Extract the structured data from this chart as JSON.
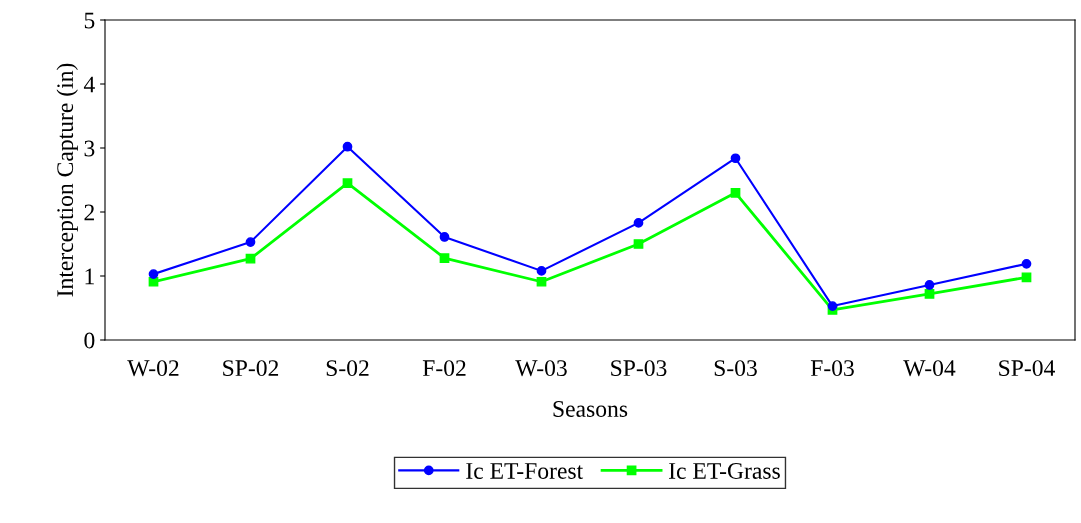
{
  "chart_data": {
    "type": "line",
    "xlabel": "Seasons",
    "ylabel": "Interception Capture (in)",
    "categories": [
      "W-02",
      "SP-02",
      "S-02",
      "F-02",
      "W-03",
      "SP-03",
      "S-03",
      "F-03",
      "W-04",
      "SP-04"
    ],
    "series": [
      {
        "name": "Ic ET-Forest",
        "color": "#0000ff",
        "marker": "circle",
        "values": [
          1.03,
          1.53,
          3.02,
          1.61,
          1.08,
          1.83,
          2.84,
          0.53,
          0.86,
          1.19
        ]
      },
      {
        "name": "Ic ET-Grass",
        "color": "#00ff00",
        "marker": "square",
        "values": [
          0.91,
          1.27,
          2.45,
          1.28,
          0.91,
          1.5,
          2.3,
          0.47,
          0.72,
          0.98
        ]
      }
    ],
    "ylim": [
      0,
      5
    ],
    "yticks": [
      0,
      1,
      2,
      3,
      4,
      5
    ],
    "grid": false,
    "legend": "bottom",
    "line_style": "solid"
  }
}
